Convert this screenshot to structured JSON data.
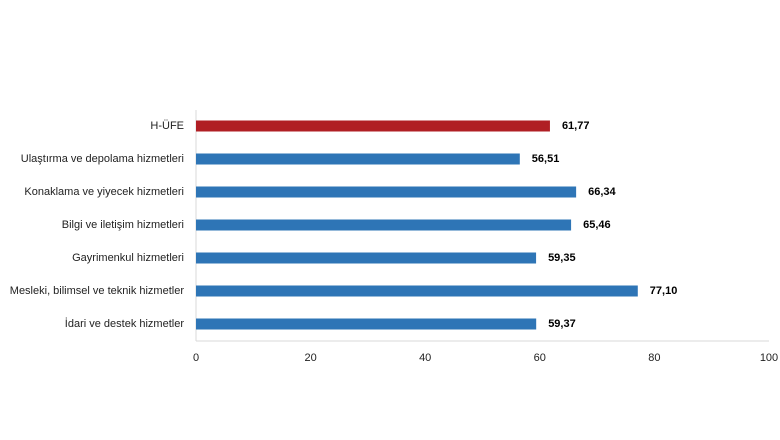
{
  "chart_data": {
    "type": "bar",
    "orientation": "horizontal",
    "categories": [
      "H-ÜFE",
      "Ulaştırma ve depolama hizmetleri",
      "Konaklama ve yiyecek hizmetleri",
      "Bilgi ve iletişim hizmetleri",
      "Gayrimenkul hizmetleri",
      "Mesleki, bilimsel ve teknik hizmetler",
      "İdari ve destek hizmetler"
    ],
    "values": [
      61.77,
      56.51,
      66.34,
      65.46,
      59.35,
      77.1,
      59.37
    ],
    "value_labels": [
      "61,77",
      "56,51",
      "66,34",
      "65,46",
      "59,35",
      "77,10",
      "59,37"
    ],
    "colors": [
      "#b01f24",
      "#2e75b6",
      "#2e75b6",
      "#2e75b6",
      "#2e75b6",
      "#2e75b6",
      "#2e75b6"
    ],
    "xlim": [
      0,
      100
    ],
    "xticks": [
      0,
      20,
      40,
      60,
      80,
      100
    ]
  }
}
